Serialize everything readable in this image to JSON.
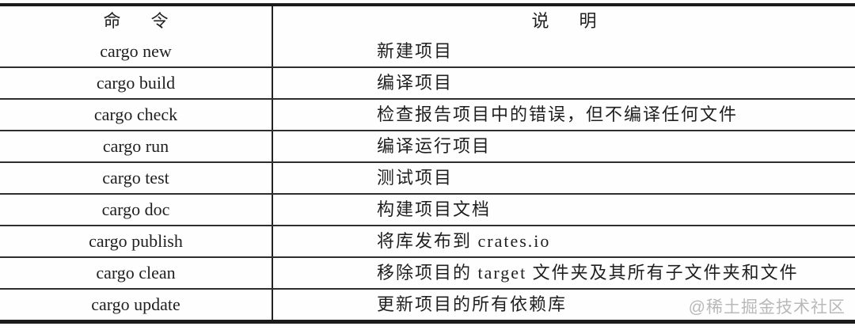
{
  "colors": {
    "background": "#fefefe",
    "border_heavy": "#1b1b1b",
    "border_light": "#2e2e2e",
    "column_divider": "#232323",
    "text": "#1f1f1f",
    "watermark": "#b9b9b9"
  },
  "table": {
    "columns": [
      {
        "key": "command",
        "label": "命　令"
      },
      {
        "key": "description",
        "label": "说　明"
      }
    ],
    "rows": [
      {
        "command": "cargo new",
        "description": "新建项目"
      },
      {
        "command": "cargo build",
        "description": "编译项目"
      },
      {
        "command": "cargo check",
        "description": "检查报告项目中的错误，但不编译任何文件"
      },
      {
        "command": "cargo run",
        "description": "编译运行项目"
      },
      {
        "command": "cargo test",
        "description": "测试项目"
      },
      {
        "command": "cargo doc",
        "description": "构建项目文档"
      },
      {
        "command": "cargo publish",
        "description": "将库发布到 crates.io"
      },
      {
        "command": "cargo clean",
        "description": "移除项目的 target 文件夹及其所有子文件夹和文件"
      },
      {
        "command": "cargo update",
        "description": "更新项目的所有依赖库"
      }
    ]
  },
  "watermark": {
    "text": "@稀土掘金技术社区"
  }
}
